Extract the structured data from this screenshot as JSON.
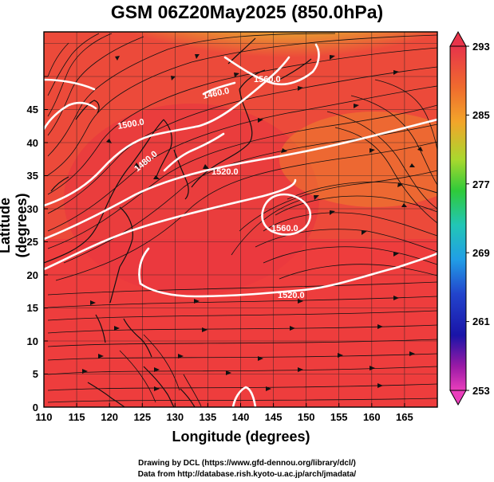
{
  "title": "GSM 06Z20May2025 (850.0hPa)",
  "axes": {
    "xlabel": "Longitude (degrees)",
    "ylabel": "Latitude  (degrees)",
    "xticks": [
      "110",
      "115",
      "120",
      "125",
      "130",
      "135",
      "140",
      "145",
      "150",
      "155",
      "160",
      "165"
    ],
    "yticks": [
      "0",
      "5",
      "10",
      "15",
      "20",
      "25",
      "30",
      "35",
      "40",
      "45"
    ]
  },
  "colorbar": {
    "labels": [
      "293",
      "285",
      "277",
      "269",
      "261",
      "253"
    ],
    "colors": [
      "#e8344a",
      "#ee5533",
      "#f59a2a",
      "#e2cf2c",
      "#8fd72f",
      "#2fca3a",
      "#24c7b4",
      "#21a6e8",
      "#2244cc",
      "#1a14a8",
      "#8a1aa6",
      "#e834b8"
    ]
  },
  "contours": [
    {
      "label": "1560.0"
    },
    {
      "label": "1520.0"
    },
    {
      "label": "1560.0"
    },
    {
      "label": "1520.0"
    },
    {
      "label": "1480.0"
    },
    {
      "label": "1500.0"
    },
    {
      "label": "1460.0"
    }
  ],
  "credits": {
    "line1": "Drawing by DCL (https://www.gfd-dennou.org/library/dcl/)",
    "line2": "Data from http://database.rish.kyoto-u.ac.jp/arch/jmadata/"
  }
}
